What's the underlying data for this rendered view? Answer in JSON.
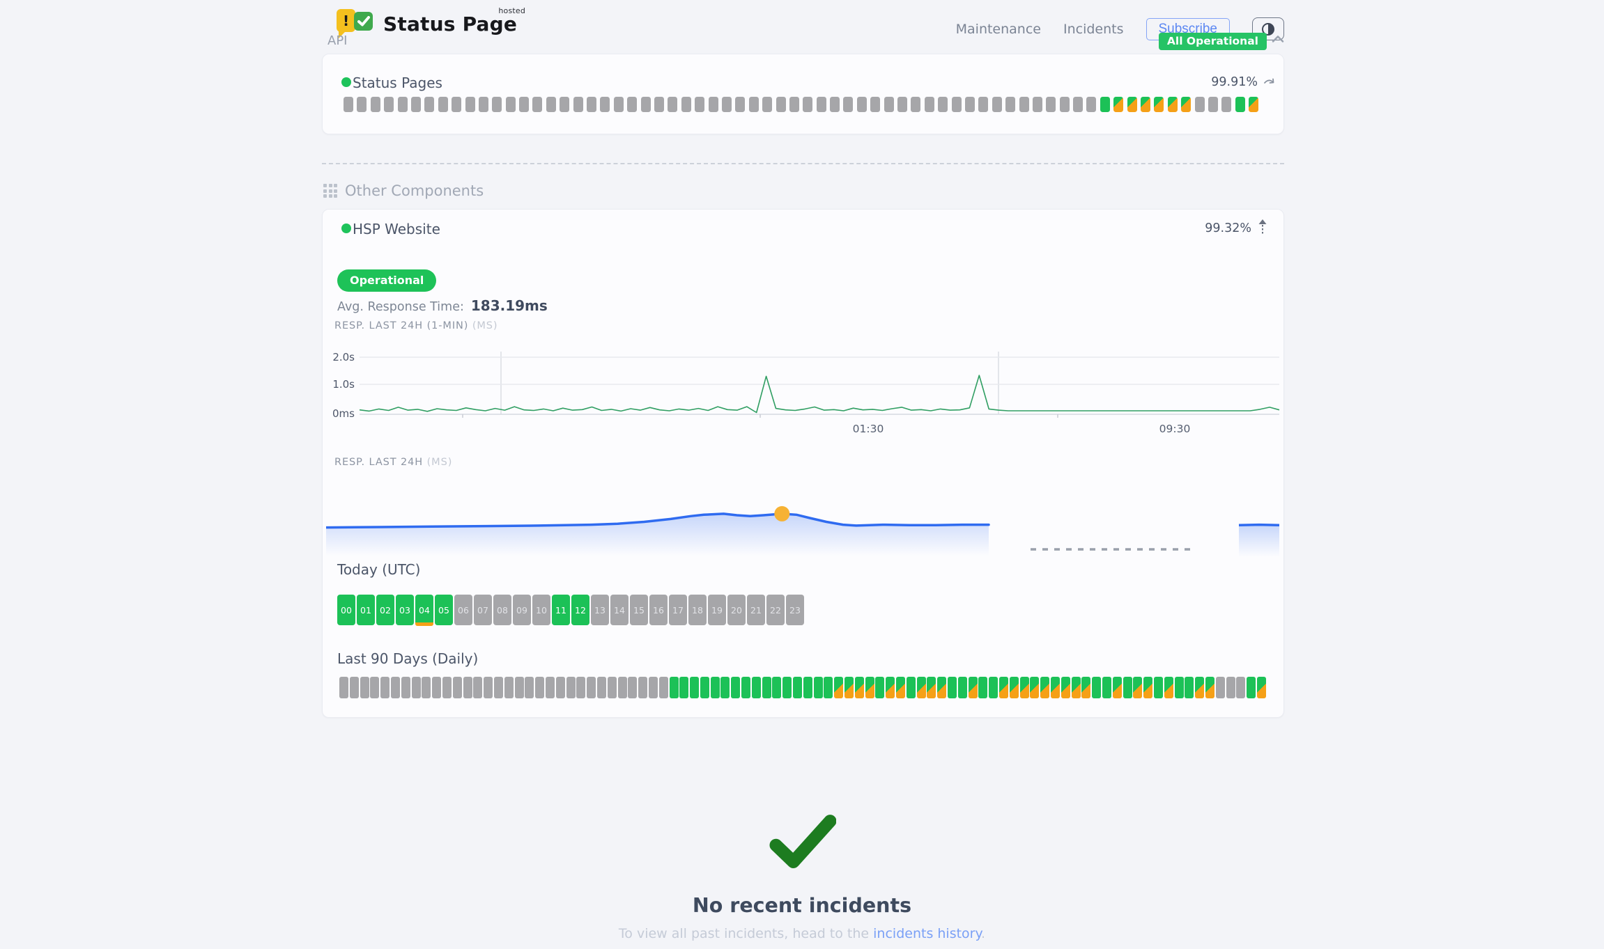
{
  "header": {
    "brand_title": "Status Page",
    "brand_superscript": "hosted",
    "logo_exclamation": "!",
    "nav": {
      "maintenance": "Maintenance",
      "incidents": "Incidents"
    },
    "subscribe_label": "Subscribe",
    "theme_toggle_icon": "half-circle-icon",
    "overall_status": "All Operational"
  },
  "api_section": {
    "label": "API",
    "component": {
      "name": "Status Pages",
      "uptime": "99.91%",
      "bars": [
        "n",
        "n",
        "n",
        "n",
        "n",
        "n",
        "n",
        "n",
        "n",
        "n",
        "n",
        "n",
        "n",
        "n",
        "n",
        "n",
        "n",
        "n",
        "n",
        "n",
        "n",
        "n",
        "n",
        "n",
        "n",
        "n",
        "n",
        "n",
        "n",
        "n",
        "n",
        "n",
        "n",
        "n",
        "n",
        "n",
        "n",
        "n",
        "n",
        "n",
        "n",
        "n",
        "n",
        "n",
        "n",
        "n",
        "n",
        "n",
        "n",
        "n",
        "n",
        "n",
        "n",
        "n",
        "n",
        "n",
        "u",
        "m",
        "m",
        "m",
        "m",
        "m",
        "m",
        "n",
        "n",
        "n",
        "u",
        "m"
      ]
    }
  },
  "other_components": {
    "label": "Other Components",
    "component": {
      "name": "HSP Website",
      "uptime": "99.32%",
      "status": "Operational",
      "avg_response_label": "Avg. Response Time:",
      "avg_response_value": "183.19ms"
    },
    "today": {
      "label": "Today (UTC)",
      "hours": [
        {
          "label": "00",
          "status": "u"
        },
        {
          "label": "01",
          "status": "u"
        },
        {
          "label": "02",
          "status": "u"
        },
        {
          "label": "03",
          "status": "u"
        },
        {
          "label": "04",
          "status": "u",
          "incident": true
        },
        {
          "label": "05",
          "status": "u"
        },
        {
          "label": "06",
          "status": "n"
        },
        {
          "label": "07",
          "status": "n"
        },
        {
          "label": "08",
          "status": "n"
        },
        {
          "label": "09",
          "status": "n"
        },
        {
          "label": "10",
          "status": "n"
        },
        {
          "label": "11",
          "status": "u"
        },
        {
          "label": "12",
          "status": "u"
        },
        {
          "label": "13",
          "status": "n"
        },
        {
          "label": "14",
          "status": "n"
        },
        {
          "label": "15",
          "status": "n"
        },
        {
          "label": "16",
          "status": "n"
        },
        {
          "label": "17",
          "status": "n"
        },
        {
          "label": "18",
          "status": "n"
        },
        {
          "label": "19",
          "status": "n"
        },
        {
          "label": "20",
          "status": "n"
        },
        {
          "label": "21",
          "status": "n"
        },
        {
          "label": "22",
          "status": "n"
        },
        {
          "label": "23",
          "status": "n"
        }
      ]
    },
    "last90": {
      "label": "Last 90 Days (Daily)",
      "bars": [
        "n",
        "n",
        "n",
        "n",
        "n",
        "n",
        "n",
        "n",
        "n",
        "n",
        "n",
        "n",
        "n",
        "n",
        "n",
        "n",
        "n",
        "n",
        "n",
        "n",
        "n",
        "n",
        "n",
        "n",
        "n",
        "n",
        "n",
        "n",
        "n",
        "n",
        "n",
        "n",
        "u",
        "u",
        "u",
        "u",
        "u",
        "u",
        "u",
        "u",
        "u",
        "u",
        "u",
        "u",
        "u",
        "u",
        "u",
        "u",
        "m",
        "m",
        "m",
        "m",
        "u",
        "m",
        "m",
        "u",
        "m",
        "m",
        "m",
        "u",
        "u",
        "m",
        "u",
        "u",
        "m",
        "m",
        "m",
        "m",
        "m",
        "m",
        "m",
        "m",
        "m",
        "u",
        "u",
        "m",
        "u",
        "m",
        "m",
        "u",
        "m",
        "u",
        "u",
        "m",
        "m",
        "n",
        "n",
        "n",
        "u",
        "m"
      ]
    }
  },
  "chart_data": [
    {
      "type": "line",
      "title": "RESP. LAST 24H (1-MIN)",
      "unit": "(MS)",
      "ylabels": [
        "2.0s",
        "1.0s",
        "0ms"
      ],
      "xlabels": [
        "01:30",
        "09:30"
      ],
      "ylim_ms": [
        0,
        2400
      ],
      "line_color": "#2f9e62",
      "values_ms": [
        150,
        110,
        180,
        130,
        240,
        140,
        170,
        100,
        190,
        150,
        130,
        220,
        160,
        120,
        200,
        140,
        260,
        150,
        130,
        180,
        120,
        210,
        140,
        160,
        250,
        130,
        170,
        110,
        190,
        140,
        230,
        150,
        120,
        180,
        140,
        200,
        130,
        260,
        160,
        140,
        260,
        60,
        1300,
        200,
        150,
        130,
        180,
        250,
        140,
        160,
        120,
        210,
        150,
        170,
        130,
        190,
        240,
        140,
        160,
        120,
        180,
        140,
        150,
        220,
        1330,
        180,
        140,
        120,
        120,
        120,
        120,
        120,
        120,
        120,
        120,
        120,
        120,
        120,
        120,
        120,
        120,
        120,
        120,
        120,
        120,
        120,
        120,
        120,
        120,
        120,
        120,
        120,
        120,
        170,
        240,
        150
      ]
    },
    {
      "type": "area",
      "title": "RESP. LAST 24H",
      "unit": "(MS)",
      "line_color": "#2f6bf0",
      "highlight_dot_color": "#f6b234",
      "points": [
        [
          0,
          152
        ],
        [
          0.08,
          153
        ],
        [
          0.16,
          154
        ],
        [
          0.24,
          155
        ],
        [
          0.32,
          156
        ],
        [
          0.4,
          158
        ],
        [
          0.44,
          160
        ],
        [
          0.48,
          164
        ],
        [
          0.52,
          170
        ],
        [
          0.55,
          176
        ],
        [
          0.57,
          179
        ],
        [
          0.6,
          181
        ],
        [
          0.62,
          178
        ],
        [
          0.64,
          176
        ],
        [
          0.66,
          178
        ],
        [
          0.688,
          181
        ],
        [
          0.71,
          179
        ],
        [
          0.73,
          172
        ],
        [
          0.755,
          164
        ],
        [
          0.78,
          158
        ],
        [
          0.8,
          156
        ],
        [
          0.84,
          158
        ],
        [
          0.88,
          157
        ],
        [
          0.92,
          157
        ],
        [
          0.96,
          158
        ],
        [
          1,
          158
        ]
      ],
      "highlight_point": {
        "fx": 0.688,
        "ms": 181
      },
      "gap_dashed": true,
      "tail_points": [
        [
          0,
          157
        ],
        [
          0.5,
          158
        ],
        [
          1,
          157
        ]
      ]
    }
  ],
  "footer": {
    "title": "No recent incidents",
    "subtitle_prefix": "To view all past incidents, head to the ",
    "link_label": "incidents history",
    "subtitle_suffix": "."
  },
  "colors": {
    "green": "#1cc157",
    "badge_green": "#26c365",
    "orange": "#f5a017",
    "gray_bar": "#a6a6a9",
    "blue_line": "#2f6bf0",
    "dot_yellow": "#f6b234",
    "link_blue": "#7aa0f6",
    "check_green": "#1d7c20"
  }
}
